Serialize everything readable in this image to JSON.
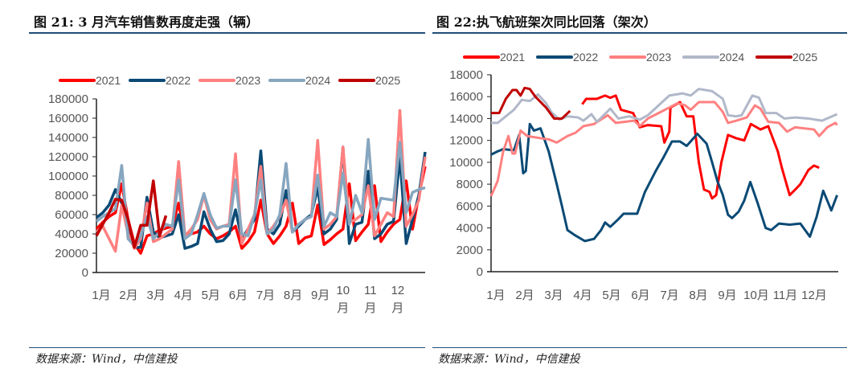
{
  "left": {
    "title": "图 21: 3 月汽车销售数再度走强（辆）",
    "source": "数据来源：Wind，中信建投"
  },
  "right": {
    "title": "图 22:执飞航班架次同比回落（架次）",
    "source": "数据来源：Wind，中信建投"
  },
  "colors": {
    "rule": "#1f4e79"
  },
  "chart_data": [
    {
      "type": "line",
      "title": "图 21: 3 月汽车销售数再度走强（辆）",
      "xlabel": "",
      "ylabel": "",
      "ylim": [
        0,
        180000
      ],
      "yticks": [
        "0",
        "20000",
        "40000",
        "60000",
        "80000",
        "100000",
        "120000",
        "140000",
        "160000",
        "180000"
      ],
      "xticks": [
        "1月",
        "2月",
        "3月",
        "4月",
        "5月",
        "6月",
        "7月",
        "8月",
        "9月",
        "10\n月",
        "11\n月",
        "12\n月"
      ],
      "x_range_months": [
        1,
        13
      ],
      "legend": "top",
      "grid": false,
      "series": [
        {
          "name": "2021",
          "color": "#ff0000",
          "values": [
            45000,
            52000,
            58000,
            62000,
            92000,
            55000,
            30000,
            20000,
            38000,
            40000,
            44000,
            46000,
            48000,
            72000,
            38000,
            40000,
            42000,
            48000,
            40000,
            35000,
            38000,
            42000,
            48000,
            25000,
            32000,
            42000,
            75000,
            40000,
            30000,
            38000,
            48000,
            72000,
            30000,
            36000,
            38000,
            70000,
            29000,
            34000,
            40000,
            45000,
            92000,
            33000,
            42000,
            50000,
            90000,
            32000,
            42000,
            50000,
            55000,
            95000,
            45000,
            80000,
            110000
          ]
        },
        {
          "name": "2022",
          "color": "#0b4a75",
          "values": [
            57000,
            62000,
            70000,
            86000,
            72000,
            42000,
            26000,
            26000,
            78000,
            42000,
            36000,
            38000,
            40000,
            60000,
            25000,
            27000,
            30000,
            63000,
            45000,
            32000,
            33000,
            40000,
            65000,
            35000,
            45000,
            55000,
            126000,
            45000,
            40000,
            50000,
            85000,
            42000,
            48000,
            55000,
            60000,
            88000,
            40000,
            45000,
            55000,
            130000,
            30000,
            50000,
            52000,
            105000,
            35000,
            40000,
            50000,
            53000,
            120000,
            30000,
            55000,
            80000,
            125000
          ]
        },
        {
          "name": "2023",
          "color": "#ff8080",
          "values": [
            42000,
            48000,
            35000,
            22000,
            70000,
            40000,
            25000,
            35000,
            72000,
            32000,
            35000,
            40000,
            45000,
            115000,
            38000,
            45000,
            55000,
            80000,
            55000,
            45000,
            48000,
            50000,
            123000,
            30000,
            45000,
            60000,
            110000,
            40000,
            48000,
            58000,
            75000,
            42000,
            50000,
            55000,
            58000,
            137000,
            45000,
            50000,
            58000,
            130000,
            52000,
            55000,
            60000,
            90000,
            38000,
            50000,
            62000,
            58000,
            168000,
            48000,
            60000,
            75000,
            120000
          ]
        },
        {
          "name": "2024",
          "color": "#87a6bf",
          "values": [
            53000,
            58000,
            62000,
            66000,
            111000,
            35000,
            28000,
            38000,
            58000,
            35000,
            42000,
            50000,
            48000,
            96000,
            35000,
            40000,
            60000,
            82000,
            60000,
            46000,
            48000,
            48000,
            96000,
            40000,
            38000,
            60000,
            96000,
            40000,
            45000,
            60000,
            113000,
            42000,
            50000,
            55000,
            58000,
            101000,
            48000,
            62000,
            58000,
            103000,
            50000,
            80000,
            62000,
            138000,
            55000,
            77000,
            76000,
            75000,
            135000,
            62000,
            83000,
            86000,
            88000
          ]
        },
        {
          "name": "2025",
          "color": "#c00000",
          "values": [
            38000,
            50000,
            62000,
            76000,
            75000,
            55000,
            26000,
            49000,
            49000,
            95000,
            38000,
            59000
          ]
        }
      ]
    },
    {
      "type": "line",
      "title": "图 22:执飞航班架次同比回落（架次）",
      "xlabel": "",
      "ylabel": "",
      "ylim": [
        0,
        18000
      ],
      "yticks": [
        "0",
        "2000",
        "4000",
        "6000",
        "8000",
        "10000",
        "12000",
        "14000",
        "16000",
        "18000"
      ],
      "xticks": [
        "1月",
        "2月",
        "3月",
        "4月",
        "5月",
        "6月",
        "7月",
        "8月",
        "9月",
        "10月",
        "11月",
        "12月"
      ],
      "x_range_months": [
        1,
        13
      ],
      "legend": "top",
      "grid": false,
      "series": [
        {
          "name": "2021",
          "color": "#ff0000",
          "points": [
            [
              4.15,
              15300
            ],
            [
              4.29,
              15800
            ],
            [
              4.66,
              15800
            ],
            [
              4.94,
              16100
            ],
            [
              5.12,
              15900
            ],
            [
              5.31,
              16100
            ],
            [
              5.49,
              14800
            ],
            [
              5.91,
              14500
            ],
            [
              6.14,
              13200
            ],
            [
              6.42,
              13400
            ],
            [
              6.88,
              13300
            ],
            [
              6.99,
              11800
            ],
            [
              7.16,
              12800
            ],
            [
              7.2,
              15000
            ],
            [
              7.53,
              15500
            ],
            [
              7.76,
              14200
            ],
            [
              7.99,
              14200
            ],
            [
              8.18,
              10000
            ],
            [
              8.36,
              7500
            ],
            [
              8.55,
              7300
            ],
            [
              8.64,
              6700
            ],
            [
              8.78,
              7000
            ],
            [
              8.96,
              10000
            ],
            [
              9.19,
              12500
            ],
            [
              9.47,
              12200
            ],
            [
              9.75,
              12000
            ],
            [
              9.98,
              13500
            ],
            [
              10.31,
              13000
            ],
            [
              10.58,
              13300
            ],
            [
              10.91,
              11000
            ],
            [
              11.05,
              9500
            ],
            [
              11.32,
              7000
            ],
            [
              11.51,
              7500
            ],
            [
              11.69,
              8000
            ],
            [
              11.97,
              9300
            ],
            [
              12.16,
              9700
            ],
            [
              12.34,
              9500
            ]
          ]
        },
        {
          "name": "2022",
          "color": "#0b4a75",
          "points": [
            [
              1.0,
              10700
            ],
            [
              1.23,
              11000
            ],
            [
              1.42,
              11200
            ],
            [
              1.79,
              11100
            ],
            [
              1.97,
              12500
            ],
            [
              2.11,
              9000
            ],
            [
              2.2,
              9200
            ],
            [
              2.34,
              13500
            ],
            [
              2.48,
              12900
            ],
            [
              2.71,
              13100
            ],
            [
              2.99,
              11000
            ],
            [
              3.27,
              8000
            ],
            [
              3.45,
              6000
            ],
            [
              3.64,
              3800
            ],
            [
              3.92,
              3300
            ],
            [
              4.24,
              2800
            ],
            [
              4.56,
              3000
            ],
            [
              4.8,
              3800
            ],
            [
              4.94,
              4500
            ],
            [
              5.12,
              4100
            ],
            [
              5.4,
              4800
            ],
            [
              5.58,
              5300
            ],
            [
              6.05,
              5300
            ],
            [
              6.32,
              7300
            ],
            [
              6.69,
              9200
            ],
            [
              6.97,
              10500
            ],
            [
              7.25,
              11900
            ],
            [
              7.53,
              11900
            ],
            [
              7.76,
              11500
            ],
            [
              8.13,
              12600
            ],
            [
              8.45,
              11700
            ],
            [
              8.64,
              10000
            ],
            [
              8.82,
              8300
            ],
            [
              9.01,
              7000
            ],
            [
              9.19,
              5200
            ],
            [
              9.33,
              4900
            ],
            [
              9.56,
              5500
            ],
            [
              9.75,
              6500
            ],
            [
              9.96,
              8200
            ],
            [
              10.21,
              6300
            ],
            [
              10.49,
              4000
            ],
            [
              10.68,
              3800
            ],
            [
              10.95,
              4400
            ],
            [
              11.32,
              4300
            ],
            [
              11.69,
              4400
            ],
            [
              12.02,
              3200
            ],
            [
              12.25,
              5000
            ],
            [
              12.48,
              7400
            ],
            [
              12.76,
              5600
            ],
            [
              12.96,
              7000
            ]
          ]
        },
        {
          "name": "2023",
          "color": "#ff8080",
          "points": [
            [
              1.0,
              6900
            ],
            [
              1.23,
              8300
            ],
            [
              1.42,
              11000
            ],
            [
              1.6,
              12400
            ],
            [
              1.74,
              10800
            ],
            [
              1.83,
              10800
            ],
            [
              2.02,
              12900
            ],
            [
              2.25,
              12400
            ],
            [
              2.71,
              12200
            ],
            [
              2.99,
              12100
            ],
            [
              3.27,
              11800
            ],
            [
              3.64,
              12400
            ],
            [
              3.92,
              12700
            ],
            [
              4.19,
              13300
            ],
            [
              4.56,
              13500
            ],
            [
              5.03,
              14300
            ],
            [
              5.31,
              13600
            ],
            [
              5.95,
              13800
            ],
            [
              6.14,
              13300
            ],
            [
              6.42,
              14000
            ],
            [
              6.79,
              14500
            ],
            [
              7.16,
              15000
            ],
            [
              7.44,
              15400
            ],
            [
              7.71,
              15200
            ],
            [
              7.9,
              14800
            ],
            [
              8.18,
              15500
            ],
            [
              8.73,
              15500
            ],
            [
              9.01,
              14600
            ],
            [
              9.19,
              13600
            ],
            [
              9.47,
              13800
            ],
            [
              9.84,
              14100
            ],
            [
              10.12,
              15200
            ],
            [
              10.31,
              14900
            ],
            [
              10.58,
              13700
            ],
            [
              10.95,
              13600
            ],
            [
              11.23,
              12800
            ],
            [
              11.51,
              13200
            ],
            [
              12.16,
              13000
            ],
            [
              12.34,
              12400
            ],
            [
              12.62,
              13200
            ],
            [
              12.9,
              13600
            ],
            [
              12.96,
              13400
            ]
          ]
        },
        {
          "name": "2024",
          "color": "#b0b8c9",
          "points": [
            [
              1.0,
              13600
            ],
            [
              1.23,
              13600
            ],
            [
              1.51,
              14200
            ],
            [
              1.79,
              14800
            ],
            [
              2.06,
              15700
            ],
            [
              2.34,
              15600
            ],
            [
              2.62,
              16200
            ],
            [
              2.9,
              15400
            ],
            [
              3.08,
              14600
            ],
            [
              3.36,
              13900
            ],
            [
              3.64,
              14200
            ],
            [
              4.01,
              14100
            ],
            [
              4.19,
              13800
            ],
            [
              4.47,
              14400
            ],
            [
              4.66,
              13700
            ],
            [
              5.12,
              14900
            ],
            [
              5.4,
              14000
            ],
            [
              5.77,
              14200
            ],
            [
              6.14,
              13900
            ],
            [
              6.42,
              14300
            ],
            [
              6.79,
              15200
            ],
            [
              7.16,
              16100
            ],
            [
              7.62,
              16300
            ],
            [
              7.9,
              16100
            ],
            [
              8.18,
              16700
            ],
            [
              8.64,
              16500
            ],
            [
              9.01,
              15800
            ],
            [
              9.19,
              14300
            ],
            [
              9.47,
              14200
            ],
            [
              9.66,
              14300
            ],
            [
              10.03,
              16100
            ],
            [
              10.26,
              15900
            ],
            [
              10.49,
              14500
            ],
            [
              10.86,
              14500
            ],
            [
              11.14,
              14000
            ],
            [
              11.51,
              14100
            ],
            [
              11.97,
              14000
            ],
            [
              12.44,
              13800
            ],
            [
              12.96,
              14400
            ]
          ]
        },
        {
          "name": "2025",
          "color": "#c00000",
          "points": [
            [
              1.0,
              14500
            ],
            [
              1.28,
              14500
            ],
            [
              1.51,
              15800
            ],
            [
              1.74,
              16600
            ],
            [
              1.88,
              16600
            ],
            [
              2.02,
              16100
            ],
            [
              2.16,
              16800
            ],
            [
              2.34,
              16700
            ],
            [
              2.53,
              16000
            ],
            [
              2.9,
              15000
            ],
            [
              3.18,
              14000
            ],
            [
              3.45,
              14000
            ],
            [
              3.73,
              14700
            ]
          ]
        }
      ]
    }
  ]
}
